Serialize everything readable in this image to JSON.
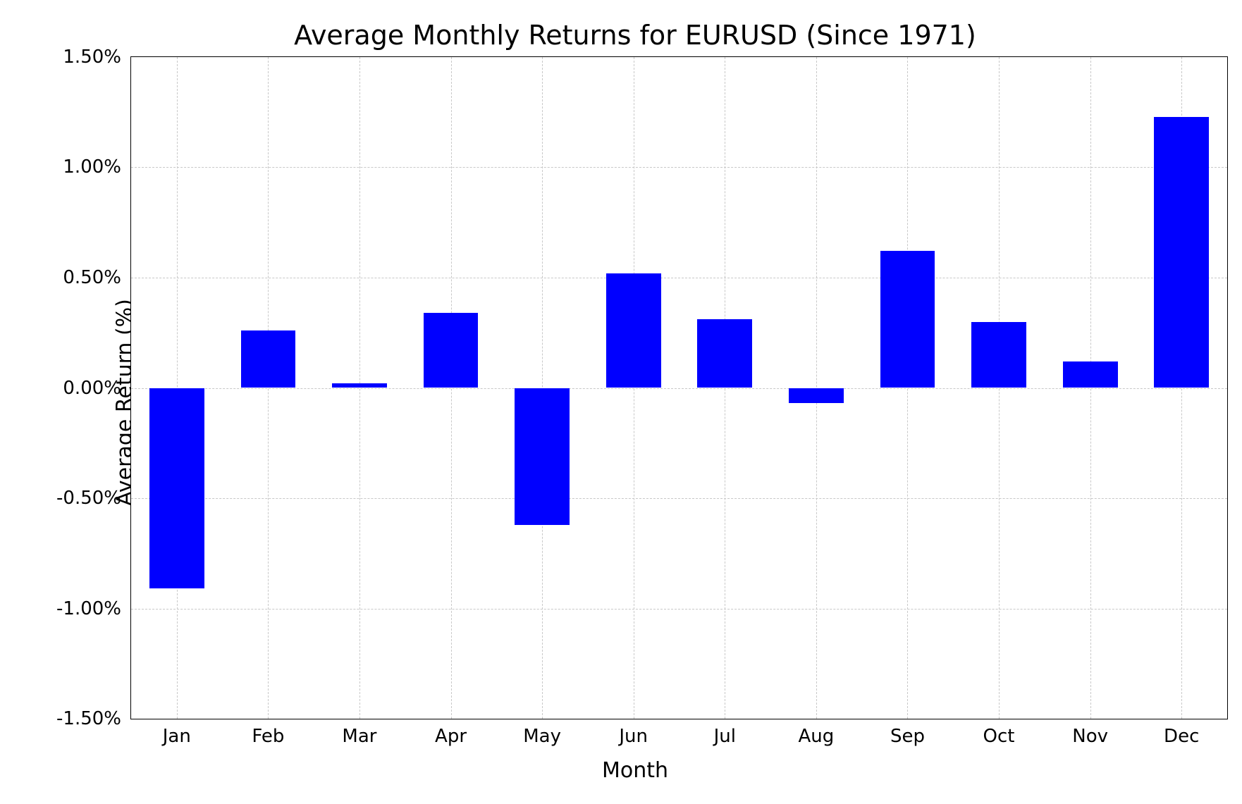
{
  "chart": {
    "type": "bar",
    "title": "Average Monthly Returns for EURUSD (Since 1971)",
    "title_fontsize": 38,
    "xlabel": "Month",
    "ylabel": "Average Return (%)",
    "label_fontsize": 30,
    "tick_fontsize": 26,
    "background_color": "#ffffff",
    "grid_color": "#c8c8c8",
    "grid_dash": true,
    "axis_color": "#000000",
    "bar_color": "#0000ff",
    "bar_width": 0.6,
    "ylim": [
      -1.5,
      1.5
    ],
    "ytick_step": 0.5,
    "yticks": [
      -1.5,
      -1.0,
      -0.5,
      0.0,
      0.5,
      1.0,
      1.5
    ],
    "ytick_labels": [
      "-1.50%",
      "-1.00%",
      "-0.50%",
      "0.00%",
      "0.50%",
      "1.00%",
      "1.50%"
    ],
    "categories": [
      "Jan",
      "Feb",
      "Mar",
      "Apr",
      "May",
      "Jun",
      "Jul",
      "Aug",
      "Sep",
      "Oct",
      "Nov",
      "Dec"
    ],
    "values": [
      -0.91,
      0.26,
      0.02,
      0.34,
      -0.62,
      0.52,
      0.31,
      -0.07,
      0.62,
      0.3,
      0.12,
      1.23
    ]
  }
}
